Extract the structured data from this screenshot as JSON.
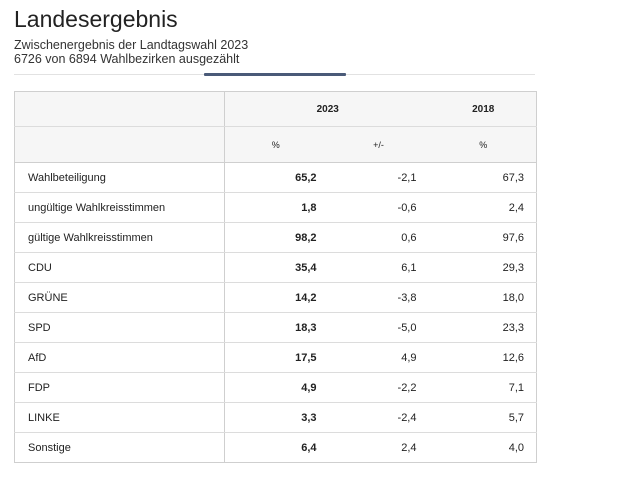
{
  "header": {
    "title": "Landesergebnis",
    "subtitle_line1": "Zwischenergebnis der Landtagswahl 2023",
    "subtitle_line2": "6726 von 6894 Wahlbezirken ausgezählt"
  },
  "colors": {
    "accent": "#4a5a78",
    "header_bg": "#f6f6f6",
    "border": "#cfcfcf"
  },
  "table": {
    "year_headers": {
      "current": "2023",
      "previous": "2018"
    },
    "sub_headers": {
      "current_percent": "%",
      "change": "+/-",
      "previous_percent": "%"
    },
    "rows": [
      {
        "label": "Wahlbeteiligung",
        "v2023": "65,2",
        "diff": "-2,1",
        "v2018": "67,3"
      },
      {
        "label": "ungültige Wahlkreisstimmen",
        "v2023": "1,8",
        "diff": "-0,6",
        "v2018": "2,4"
      },
      {
        "label": "gültige Wahlkreisstimmen",
        "v2023": "98,2",
        "diff": "0,6",
        "v2018": "97,6"
      },
      {
        "label": "CDU",
        "v2023": "35,4",
        "diff": "6,1",
        "v2018": "29,3"
      },
      {
        "label": "GRÜNE",
        "v2023": "14,2",
        "diff": "-3,8",
        "v2018": "18,0"
      },
      {
        "label": "SPD",
        "v2023": "18,3",
        "diff": "-5,0",
        "v2018": "23,3"
      },
      {
        "label": "AfD",
        "v2023": "17,5",
        "diff": "4,9",
        "v2018": "12,6"
      },
      {
        "label": "FDP",
        "v2023": "4,9",
        "diff": "-2,2",
        "v2018": "7,1"
      },
      {
        "label": "LINKE",
        "v2023": "3,3",
        "diff": "-2,4",
        "v2018": "5,7"
      },
      {
        "label": "Sonstige",
        "v2023": "6,4",
        "diff": "2,4",
        "v2018": "4,0"
      }
    ]
  }
}
